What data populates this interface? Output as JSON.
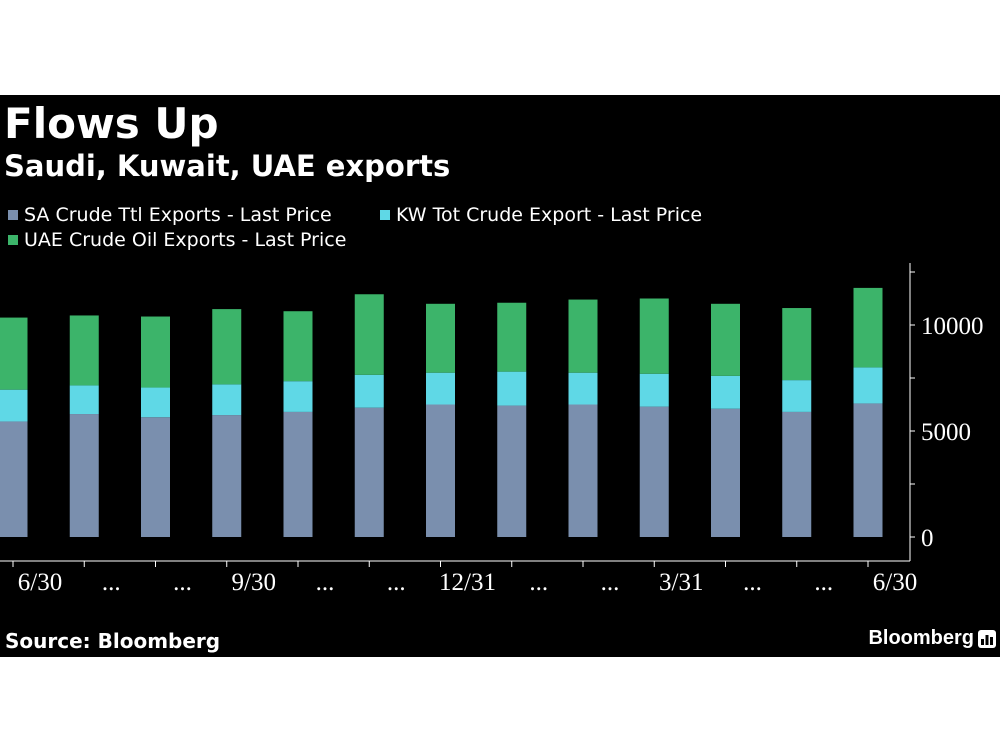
{
  "header": {
    "title": "Flows Up",
    "subtitle": "Saudi, Kuwait, UAE exports"
  },
  "legend": [
    {
      "label": "SA Crude Ttl Exports - Last Price",
      "color": "#7a8fae"
    },
    {
      "label": "KW Tot Crude Export - Last Price",
      "color": "#5fd8e6"
    },
    {
      "label": "UAE Crude Oil Exports - Last Price",
      "color": "#3cb46a"
    }
  ],
  "footer": {
    "source": "Source: Bloomberg",
    "brand": "Bloomberg",
    "brand_icon": "bar-chart-icon"
  },
  "chart_data": {
    "type": "bar",
    "stacked": true,
    "categories": [
      "6/30",
      "...",
      "...",
      "9/30",
      "...",
      "...",
      "12/31",
      "...",
      "...",
      "3/31",
      "...",
      "...",
      "6/30"
    ],
    "series": [
      {
        "name": "SA Crude Ttl Exports - Last Price",
        "color": "#7a8fae",
        "values": [
          5450,
          5800,
          5650,
          5750,
          5900,
          6100,
          6250,
          6200,
          6250,
          6150,
          6050,
          5900,
          6300
        ]
      },
      {
        "name": "KW Tot Crude Export - Last Price",
        "color": "#5fd8e6",
        "values": [
          1500,
          1350,
          1400,
          1450,
          1450,
          1550,
          1500,
          1600,
          1500,
          1550,
          1550,
          1500,
          1700
        ]
      },
      {
        "name": "UAE Crude Oil Exports - Last Price",
        "color": "#3cb46a",
        "values": [
          3400,
          3300,
          3350,
          3550,
          3300,
          3800,
          3250,
          3250,
          3450,
          3550,
          3400,
          3400,
          3750
        ]
      }
    ],
    "y_ticks": [
      "0",
      "5000",
      "10000"
    ],
    "y_tick_values": [
      0,
      5000,
      10000
    ],
    "ylim": [
      0,
      12500
    ],
    "y_axis_position": "right",
    "grid": false,
    "legend_position": "top-left"
  }
}
